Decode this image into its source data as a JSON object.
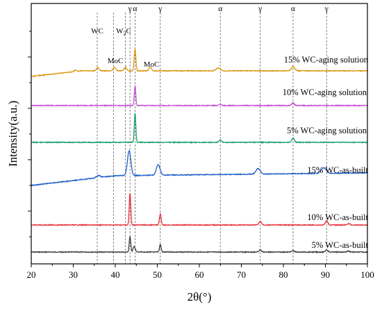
{
  "chart_data": {
    "type": "line",
    "xlabel": "2θ(°)",
    "ylabel": "Intensity(a.u.)",
    "xlim": [
      20,
      100
    ],
    "xticks": [
      "20",
      "30",
      "40",
      "50",
      "60",
      "70",
      "80",
      "90",
      "100"
    ],
    "grid": false,
    "reference_lines": [
      {
        "x": 35.7,
        "label": "WC"
      },
      {
        "x": 39.6,
        "label": ""
      },
      {
        "x": 42.4,
        "label": ""
      },
      {
        "x": 43.5,
        "label": "γ"
      },
      {
        "x": 44.7,
        "label": "α"
      },
      {
        "x": 50.7,
        "label": "γ"
      },
      {
        "x": 65.0,
        "label": "α"
      },
      {
        "x": 74.5,
        "label": "γ"
      },
      {
        "x": 82.3,
        "label": "α"
      },
      {
        "x": 90.3,
        "label": "γ"
      }
    ],
    "annotations": [
      {
        "text": "W2C",
        "x": 42.4
      },
      {
        "text": "MoC",
        "x": 39.8
      },
      {
        "text": "MoC",
        "x": 48.3
      }
    ],
    "series": [
      {
        "name": "5% WC-as-built",
        "color": "#404040",
        "baseline": 0.0,
        "peaks": [
          {
            "x": 43.5,
            "h": 23,
            "w": 0.18
          },
          {
            "x": 44.5,
            "h": 8,
            "w": 0.25
          },
          {
            "x": 50.7,
            "h": 11,
            "w": 0.2
          },
          {
            "x": 74.5,
            "h": 3,
            "w": 0.3
          },
          {
            "x": 82.3,
            "h": 2,
            "w": 0.3
          },
          {
            "x": 90.3,
            "h": 3,
            "w": 0.3
          },
          {
            "x": 95.5,
            "h": 1.5,
            "w": 0.3
          }
        ]
      },
      {
        "name": "10% WC-as-built",
        "color": "#e8323c",
        "baseline": 0.0,
        "peaks": [
          {
            "x": 43.5,
            "h": 46,
            "w": 0.18
          },
          {
            "x": 50.7,
            "h": 16,
            "w": 0.2
          },
          {
            "x": 74.5,
            "h": 5,
            "w": 0.3
          },
          {
            "x": 90.3,
            "h": 6,
            "w": 0.3
          },
          {
            "x": 95.5,
            "h": 2,
            "w": 0.3
          }
        ]
      },
      {
        "name": "15% WC-as-built",
        "color": "#1f5fc8",
        "baseline": 0.0,
        "peaks": [
          {
            "x": 43.3,
            "h": 36,
            "w": 0.4
          },
          {
            "x": 50.2,
            "h": 15,
            "w": 0.45
          },
          {
            "x": 74.0,
            "h": 8,
            "w": 0.5
          },
          {
            "x": 89.6,
            "h": 8,
            "w": 0.6
          },
          {
            "x": 36.0,
            "h": 3,
            "w": 0.5
          }
        ]
      },
      {
        "name": "5% WC-aging solution",
        "color": "#1aa06a",
        "baseline": 0.0,
        "peaks": [
          {
            "x": 44.7,
            "h": 42,
            "w": 0.18
          },
          {
            "x": 65.0,
            "h": 3,
            "w": 0.3
          },
          {
            "x": 82.3,
            "h": 6,
            "w": 0.3
          }
        ]
      },
      {
        "name": "10% WC-aging solution",
        "color": "#c84fd8",
        "baseline": 0.0,
        "peaks": [
          {
            "x": 44.7,
            "h": 28,
            "w": 0.18
          },
          {
            "x": 65.0,
            "h": 2,
            "w": 0.3
          },
          {
            "x": 82.3,
            "h": 4,
            "w": 0.3
          }
        ]
      },
      {
        "name": "15% WC-aging solution",
        "color": "#dd9a14",
        "baseline": 0.0,
        "peaks": [
          {
            "x": 44.7,
            "h": 32,
            "w": 0.2
          },
          {
            "x": 35.8,
            "h": 5,
            "w": 0.3
          },
          {
            "x": 39.8,
            "h": 5,
            "w": 0.3
          },
          {
            "x": 42.4,
            "h": 5,
            "w": 0.3
          },
          {
            "x": 48.3,
            "h": 5,
            "w": 0.3
          },
          {
            "x": 64.5,
            "h": 4,
            "w": 0.5
          },
          {
            "x": 82.3,
            "h": 6,
            "w": 0.4
          },
          {
            "x": 30.5,
            "h": 2,
            "w": 0.3
          }
        ]
      }
    ]
  }
}
